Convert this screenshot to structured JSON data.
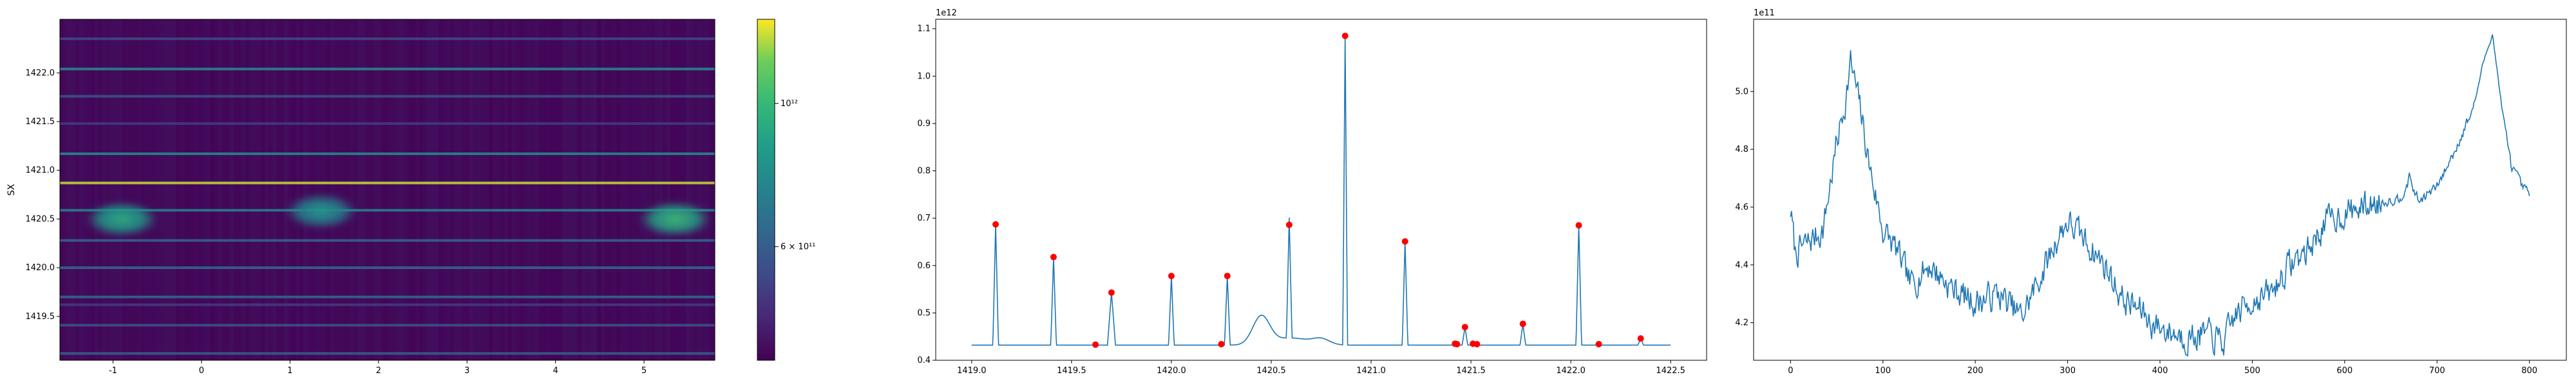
{
  "chart_data": [
    {
      "type": "heatmap",
      "title": "",
      "xlabel": "",
      "ylabel": "SX",
      "xlim": [
        -1.6,
        5.8
      ],
      "ylim": [
        1419.05,
        1422.55
      ],
      "xticks": [
        "-1",
        "0",
        "1",
        "2",
        "3",
        "4",
        "5"
      ],
      "xtick_values": [
        -1,
        0,
        1,
        2,
        3,
        4,
        5
      ],
      "yticks": [
        "1419.5",
        "1420.0",
        "1420.5",
        "1421.0",
        "1421.5",
        "1422.0"
      ],
      "ytick_values": [
        1419.5,
        1420.0,
        1420.5,
        1421.0,
        1421.5,
        1422.0
      ],
      "colormap": "viridis",
      "colorbar": {
        "scale": "log",
        "range": [
          400000000000.0,
          1350000000000.0
        ],
        "tick_labels": [
          "6 × 10¹¹",
          "10¹²"
        ],
        "tick_values": [
          600000000000.0,
          1000000000000.0
        ]
      },
      "horizontal_lines": [
        {
          "y": 1419.12,
          "level": 0.35
        },
        {
          "y": 1419.41,
          "level": 0.3
        },
        {
          "y": 1419.62,
          "level": 0.2
        },
        {
          "y": 1419.7,
          "level": 0.4
        },
        {
          "y": 1420.0,
          "level": 0.4
        },
        {
          "y": 1420.28,
          "level": 0.38
        },
        {
          "y": 1420.59,
          "level": 0.5
        },
        {
          "y": 1420.87,
          "level": 0.95
        },
        {
          "y": 1421.17,
          "level": 0.55
        },
        {
          "y": 1421.48,
          "level": 0.2
        },
        {
          "y": 1421.76,
          "level": 0.3
        },
        {
          "y": 1422.04,
          "level": 0.55
        },
        {
          "y": 1422.35,
          "level": 0.25
        }
      ],
      "blobs": [
        {
          "x": -0.9,
          "y": 1420.5,
          "level": 0.6
        },
        {
          "x": 1.35,
          "y": 1420.58,
          "level": 0.5
        },
        {
          "x": 5.35,
          "y": 1420.5,
          "level": 0.65
        }
      ]
    },
    {
      "type": "line",
      "title": "",
      "xlabel": "",
      "ylabel": "",
      "offset_label": "1e12",
      "xlim": [
        1418.82,
        1422.68
      ],
      "ylim": [
        0.4,
        1.12
      ],
      "xticks": [
        "1419.0",
        "1419.5",
        "1420.0",
        "1420.5",
        "1421.0",
        "1421.5",
        "1422.0",
        "1422.5"
      ],
      "xtick_values": [
        1419.0,
        1419.5,
        1420.0,
        1420.5,
        1421.0,
        1421.5,
        1422.0,
        1422.5
      ],
      "yticks": [
        "0.4",
        "0.5",
        "0.6",
        "0.7",
        "0.8",
        "0.9",
        "1.0",
        "1.1"
      ],
      "ytick_values": [
        0.4,
        0.5,
        0.6,
        0.7,
        0.8,
        0.9,
        1.0,
        1.1
      ],
      "baseline": 0.432,
      "x_start": 1419.0,
      "x_end": 1422.5,
      "line_color": "#1f77b4",
      "marker_color": "#ff0000",
      "peaks": [
        {
          "x": 1419.12,
          "y": 0.687,
          "w": 0.014
        },
        {
          "x": 1419.41,
          "y": 0.618,
          "w": 0.014
        },
        {
          "x": 1419.62,
          "y": 0.433,
          "w": 0.01
        },
        {
          "x": 1419.7,
          "y": 0.543,
          "w": 0.02
        },
        {
          "x": 1420.0,
          "y": 0.578,
          "w": 0.014
        },
        {
          "x": 1420.25,
          "y": 0.434,
          "w": 0.01
        },
        {
          "x": 1420.28,
          "y": 0.578,
          "w": 0.014
        },
        {
          "x": 1420.59,
          "y": 0.686,
          "w": 0.014
        },
        {
          "x": 1420.87,
          "y": 1.085,
          "w": 0.012
        },
        {
          "x": 1421.17,
          "y": 0.651,
          "w": 0.014
        },
        {
          "x": 1421.42,
          "y": 0.435,
          "w": 0.01
        },
        {
          "x": 1421.43,
          "y": 0.434,
          "w": 0.01
        },
        {
          "x": 1421.47,
          "y": 0.47,
          "w": 0.014
        },
        {
          "x": 1421.51,
          "y": 0.435,
          "w": 0.01
        },
        {
          "x": 1421.53,
          "y": 0.434,
          "w": 0.01
        },
        {
          "x": 1421.76,
          "y": 0.477,
          "w": 0.014
        },
        {
          "x": 1422.04,
          "y": 0.685,
          "w": 0.014
        },
        {
          "x": 1422.14,
          "y": 0.434,
          "w": 0.01
        },
        {
          "x": 1422.35,
          "y": 0.446,
          "w": 0.014
        }
      ],
      "bumps": [
        {
          "x": 1420.45,
          "amp": 0.06,
          "w": 0.06
        },
        {
          "x": 1420.6,
          "amp": 0.015,
          "w": 0.12
        },
        {
          "x": 1420.75,
          "amp": 0.012,
          "w": 0.06
        }
      ]
    },
    {
      "type": "line",
      "title": "",
      "xlabel": "",
      "ylabel": "",
      "offset_label": "1e11",
      "xlim": [
        -40,
        840
      ],
      "ylim": [
        4.07,
        5.25
      ],
      "xticks": [
        "0",
        "100",
        "200",
        "300",
        "400",
        "500",
        "600",
        "700",
        "800"
      ],
      "xtick_values": [
        0,
        100,
        200,
        300,
        400,
        500,
        600,
        700,
        800
      ],
      "yticks": [
        "4.2",
        "4.4",
        "4.6",
        "4.8",
        "5.0"
      ],
      "ytick_values": [
        4.2,
        4.4,
        4.6,
        4.8,
        5.0
      ],
      "line_color": "#1f77b4",
      "n_points": 801,
      "anchors_x": [
        0,
        5,
        20,
        35,
        50,
        60,
        65,
        75,
        85,
        100,
        115,
        130,
        150,
        175,
        200,
        225,
        250,
        275,
        290,
        300,
        320,
        340,
        360,
        380,
        390,
        410,
        430,
        450,
        470,
        480,
        500,
        520,
        540,
        560,
        580,
        600,
        620,
        640,
        660,
        670,
        680,
        700,
        720,
        740,
        750,
        760,
        770,
        780,
        790,
        800
      ],
      "anchors_y": [
        4.59,
        4.44,
        4.48,
        4.52,
        4.82,
        4.98,
        5.1,
        4.95,
        4.75,
        4.52,
        4.45,
        4.33,
        4.4,
        4.32,
        4.27,
        4.3,
        4.22,
        4.39,
        4.5,
        4.55,
        4.48,
        4.4,
        4.28,
        4.24,
        4.2,
        4.17,
        4.15,
        4.16,
        4.13,
        4.22,
        4.28,
        4.3,
        4.4,
        4.45,
        4.55,
        4.58,
        4.6,
        4.62,
        4.63,
        4.7,
        4.62,
        4.67,
        4.8,
        4.95,
        5.1,
        5.2,
        4.95,
        4.75,
        4.68,
        4.64
      ],
      "noise_amp": 0.045,
      "noise_seed": 7
    }
  ]
}
